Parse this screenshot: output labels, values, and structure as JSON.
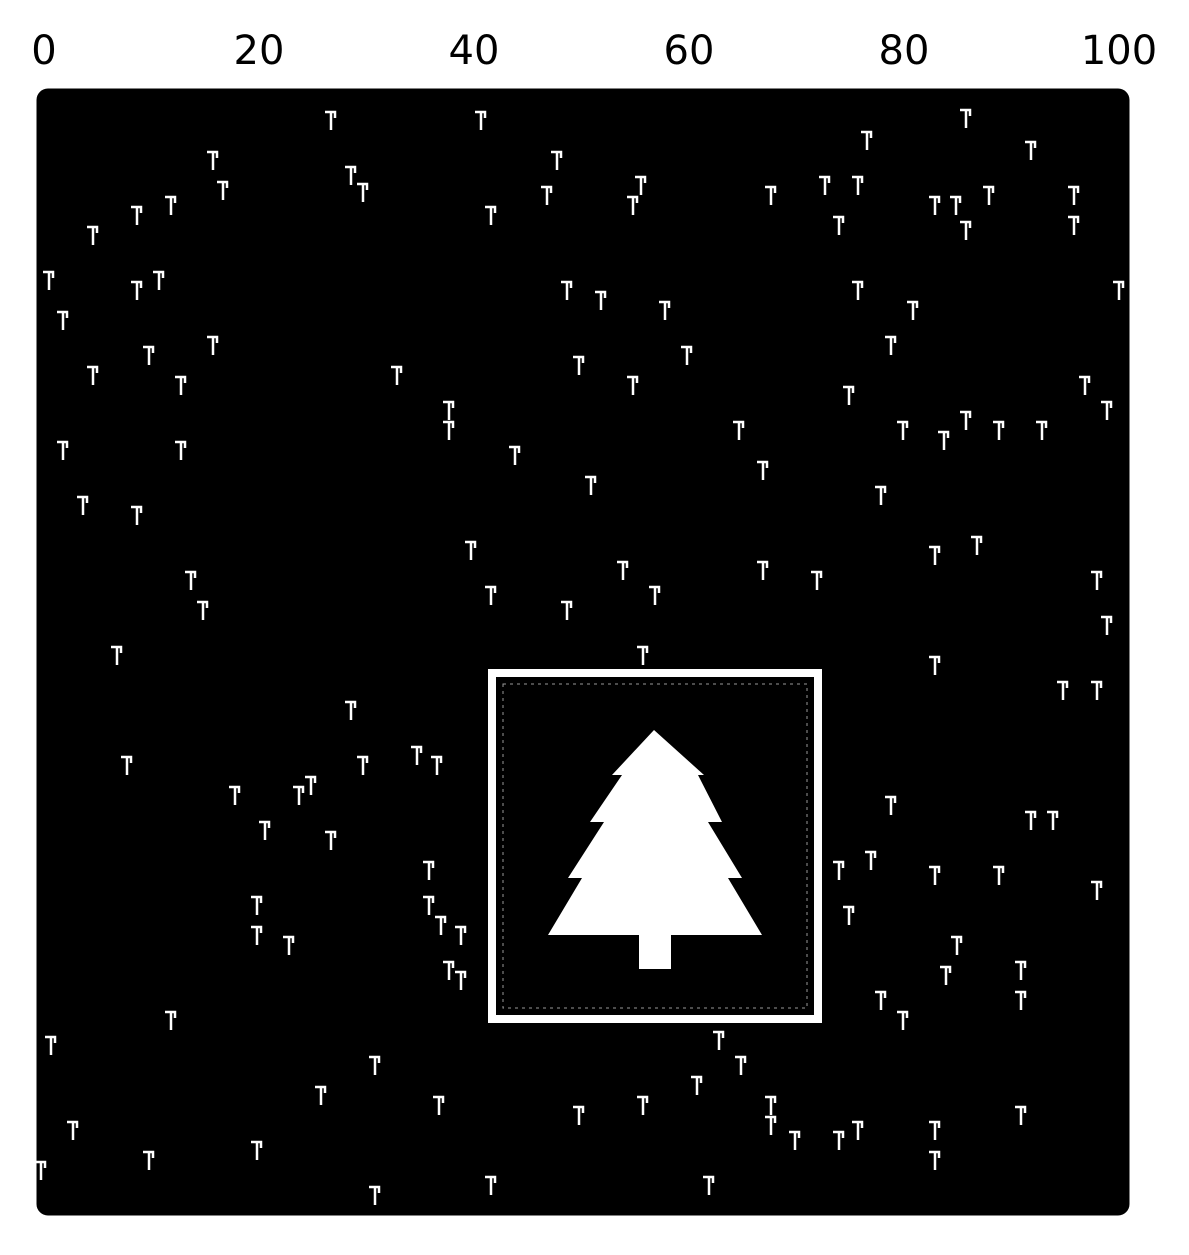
{
  "axis": {
    "ticks": [
      "0",
      "20",
      "40",
      "60",
      "80",
      "100"
    ]
  },
  "palette": {
    "background": "#ffffff",
    "field": "#000000",
    "marks": "#ffffff"
  },
  "icons": {
    "center": "tree-icon",
    "scatter": "flag-glyph"
  }
}
